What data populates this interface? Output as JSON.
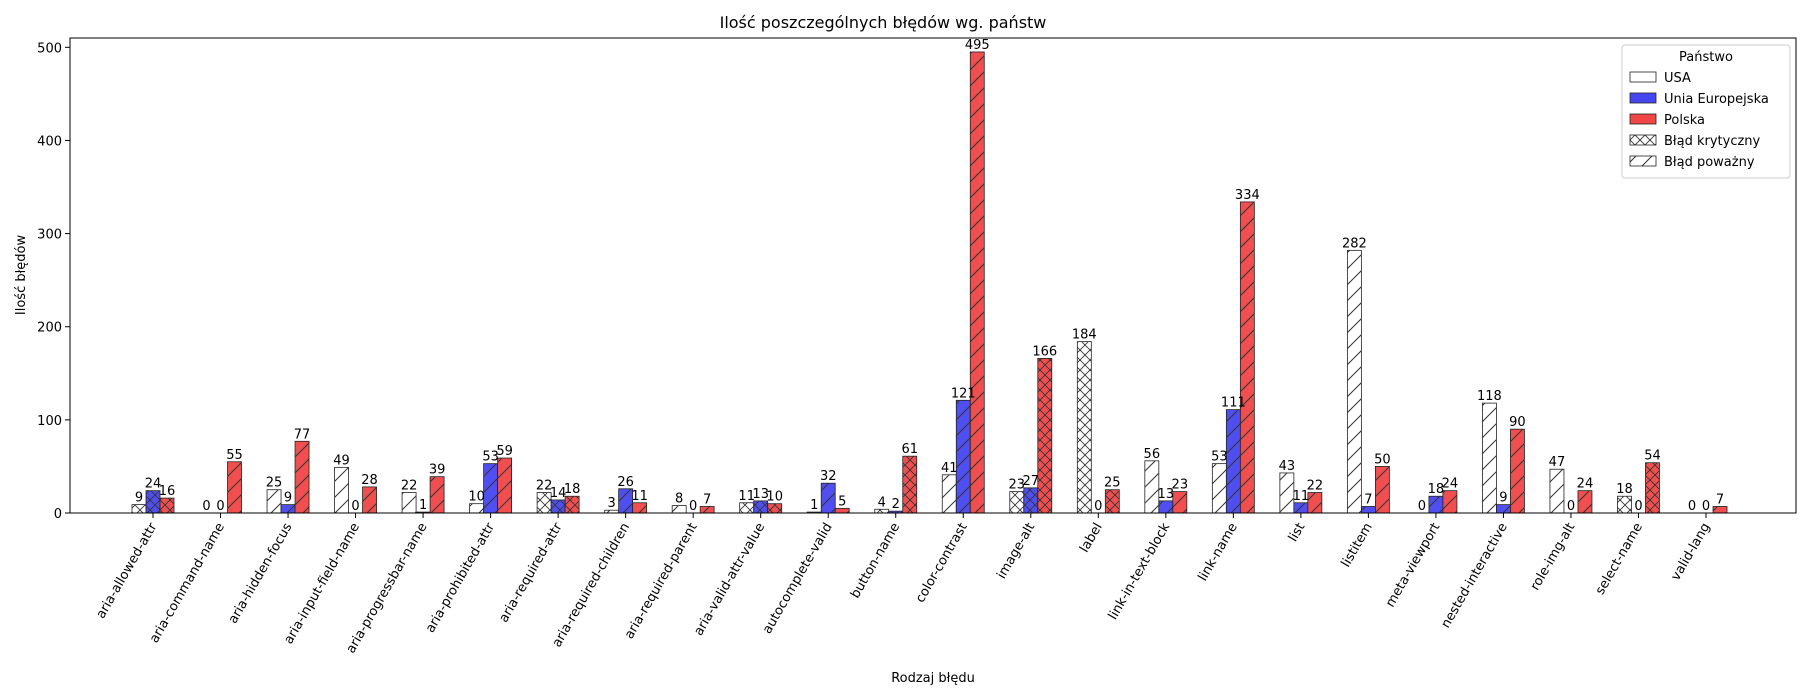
{
  "chart_data": {
    "type": "bar",
    "title": "Ilość poszczególnych błędów wg. państw",
    "xlabel": "Rodzaj błędu",
    "ylabel": "Ilość błędów",
    "ylim": [
      0,
      510
    ],
    "yticks": [
      0,
      100,
      200,
      300,
      400,
      500
    ],
    "grid": false,
    "legend_position": "top-right",
    "legend_title": "Państwo",
    "categories": [
      "aria-allowed-attr",
      "aria-command-name",
      "aria-hidden-focus",
      "aria-input-field-name",
      "aria-progressbar-name",
      "aria-prohibited-attr",
      "aria-required-attr",
      "aria-required-children",
      "aria-required-parent",
      "aria-valid-attr-value",
      "autocomplete-valid",
      "button-name",
      "color-contrast",
      "image-alt",
      "label",
      "link-in-text-block",
      "link-name",
      "list",
      "listitem",
      "meta-viewport",
      "nested-interactive",
      "role-img-alt",
      "select-name",
      "valid-lang"
    ],
    "series": [
      {
        "name": "USA",
        "color": "#ffffff",
        "values": [
          9,
          0,
          25,
          49,
          22,
          10,
          22,
          3,
          8,
          11,
          1,
          4,
          41,
          23,
          184,
          56,
          53,
          43,
          282,
          0,
          118,
          47,
          18,
          0
        ]
      },
      {
        "name": "Unia Europejska",
        "color": "#4646f0",
        "values": [
          24,
          0,
          9,
          0,
          1,
          53,
          14,
          26,
          0,
          13,
          32,
          2,
          121,
          27,
          0,
          13,
          111,
          11,
          7,
          18,
          9,
          0,
          0,
          0
        ]
      },
      {
        "name": "Polska",
        "color": "#f04646",
        "values": [
          16,
          55,
          77,
          28,
          39,
          59,
          18,
          11,
          7,
          10,
          5,
          61,
          495,
          166,
          25,
          23,
          334,
          22,
          50,
          24,
          90,
          24,
          54,
          7
        ]
      }
    ],
    "severity_legend": [
      {
        "name": "Błąd krytyczny",
        "hatch": "cross"
      },
      {
        "name": "Błąd poważny",
        "hatch": "diagonal"
      }
    ],
    "critical_categories": [
      "aria-allowed-attr",
      "aria-required-attr",
      "aria-valid-attr-value",
      "button-name",
      "image-alt",
      "label",
      "select-name"
    ]
  }
}
